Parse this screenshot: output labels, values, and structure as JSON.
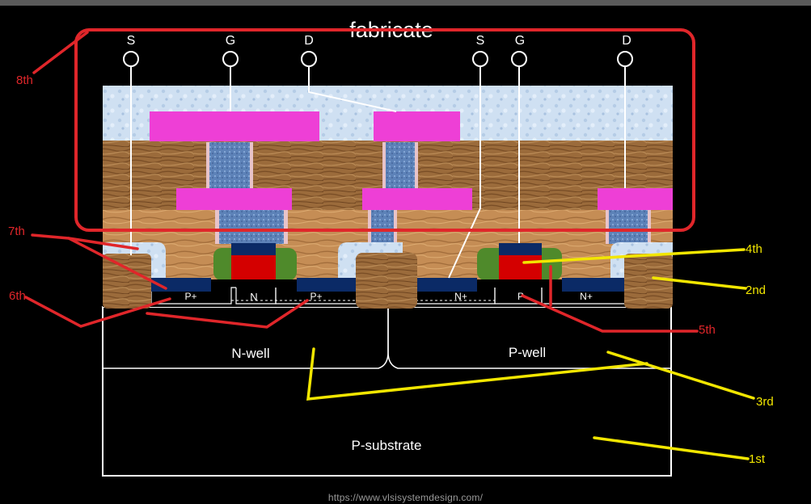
{
  "title": "fabricate",
  "terminals": [
    "S",
    "G",
    "D",
    "S",
    "G",
    "D"
  ],
  "regions": {
    "n_well": "N-well",
    "p_well": "P-well",
    "p_substrate": "P-substrate"
  },
  "diffusions": {
    "p_plus_left": "P+",
    "n_tap": "N",
    "p_plus_right": "P+",
    "n_plus_left": "N+",
    "p_tap": "P",
    "n_plus_right": "N+"
  },
  "annotations": {
    "red": [
      "8th",
      "7th",
      "6th",
      "5th"
    ],
    "yellow": [
      "4th",
      "2nd",
      "3rd",
      "1st"
    ]
  },
  "source_url": "https://www.vlsisystemdesign.com/",
  "colors": {
    "background": "#000000",
    "metal": "#ee3fd6",
    "gate_poly": "#d40000",
    "spacer": "#4f8a2b",
    "diffusion": "#0b2a66",
    "oxide": "#cfe0f2",
    "via": "#5d82b8",
    "wood": "#9a6a3a",
    "annotation_red": "#e0262a",
    "annotation_yellow": "#f2e600"
  }
}
